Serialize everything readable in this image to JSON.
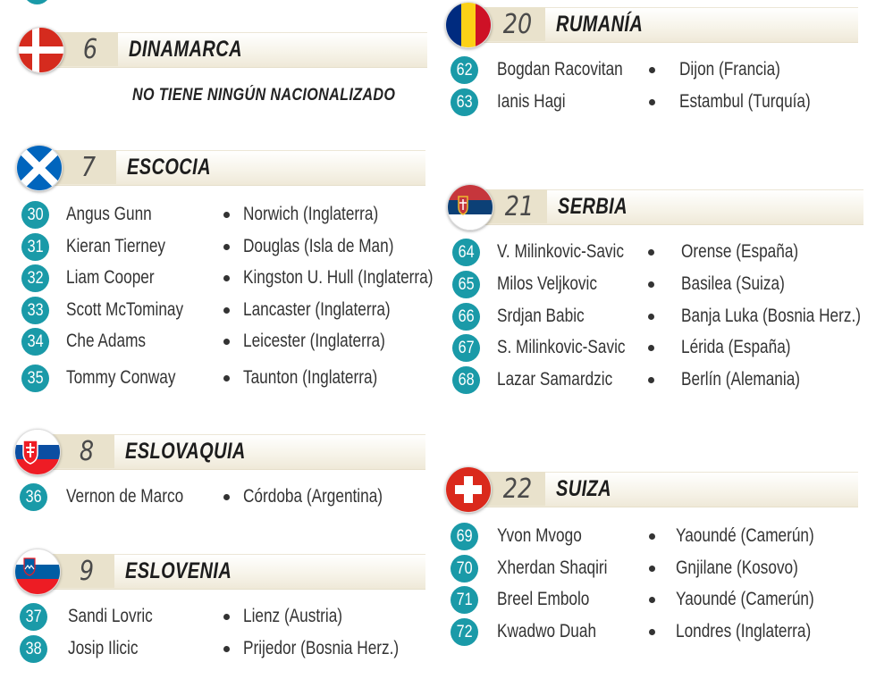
{
  "sections": {
    "dinamarca": {
      "number": "6",
      "name": "DINAMARCA",
      "note": "NO TIENE NINGÚN NACIONALIZADO"
    },
    "escocia": {
      "number": "7",
      "name": "ESCOCIA",
      "players": [
        {
          "num": "30",
          "name": "Angus Gunn",
          "birthplace": "Norwich (Inglaterra)"
        },
        {
          "num": "31",
          "name": "Kieran Tierney",
          "birthplace": "Douglas (Isla de Man)"
        },
        {
          "num": "32",
          "name": "Liam Cooper",
          "birthplace": "Kingston U. Hull (Inglaterra)"
        },
        {
          "num": "33",
          "name": "Scott McTominay",
          "birthplace": "Lancaster (Inglaterra)"
        },
        {
          "num": "34",
          "name": "Che Adams",
          "birthplace": "Leicester (Inglaterra)"
        },
        {
          "num": "35",
          "name": "Tommy Conway",
          "birthplace": "Taunton (Inglaterra)"
        }
      ]
    },
    "eslovaquia": {
      "number": "8",
      "name": "ESLOVAQUIA",
      "players": [
        {
          "num": "36",
          "name": "Vernon de Marco",
          "birthplace": "Córdoba (Argentina)"
        }
      ]
    },
    "eslovenia": {
      "number": "9",
      "name": "ESLOVENIA",
      "players": [
        {
          "num": "37",
          "name": "Sandi Lovric",
          "birthplace": "Lienz (Austria)"
        },
        {
          "num": "38",
          "name": "Josip Ilicic",
          "birthplace": "Prijedor (Bosnia Herz.)"
        }
      ]
    },
    "rumania": {
      "number": "20",
      "name": "RUMANÍA",
      "players": [
        {
          "num": "62",
          "name": "Bogdan Racovitan",
          "birthplace": "Dijon (Francia)"
        },
        {
          "num": "63",
          "name": "Ianis Hagi",
          "birthplace": "Estambul (Turquía)"
        }
      ]
    },
    "serbia": {
      "number": "21",
      "name": "SERBIA",
      "players": [
        {
          "num": "64",
          "name": "V. Milinkovic-Savic",
          "birthplace": "Orense (España)"
        },
        {
          "num": "65",
          "name": "Milos Veljkovic",
          "birthplace": "Basilea (Suiza)"
        },
        {
          "num": "66",
          "name": "Srdjan Babic",
          "birthplace": "Banja Luka (Bosnia Herz.)"
        },
        {
          "num": "67",
          "name": "S. Milinkovic-Savic",
          "birthplace": "Lérida (España)"
        },
        {
          "num": "68",
          "name": "Lazar Samardzic",
          "birthplace": "Berlín (Alemania)"
        }
      ]
    },
    "suiza": {
      "number": "22",
      "name": "SUIZA",
      "players": [
        {
          "num": "69",
          "name": "Yvon Mvogo",
          "birthplace": "Yaoundé (Camerún)"
        },
        {
          "num": "70",
          "name": "Xherdan Shaqiri",
          "birthplace": "Gnjilane (Kosovo)"
        },
        {
          "num": "71",
          "name": "Breel Embolo",
          "birthplace": "Yaoundé (Camerún)"
        },
        {
          "num": "72",
          "name": "Kwadwo Duah",
          "birthplace": "Londres (Inglaterra)"
        }
      ]
    }
  },
  "colors": {
    "badge": "#1a9aa8",
    "header_band": "#efe9d8"
  },
  "icons": {
    "dinamarca": "flag-denmark-icon",
    "escocia": "flag-scotland-icon",
    "eslovaquia": "flag-slovakia-icon",
    "eslovenia": "flag-slovenia-icon",
    "rumania": "flag-romania-icon",
    "serbia": "flag-serbia-icon",
    "suiza": "flag-switzerland-icon"
  }
}
